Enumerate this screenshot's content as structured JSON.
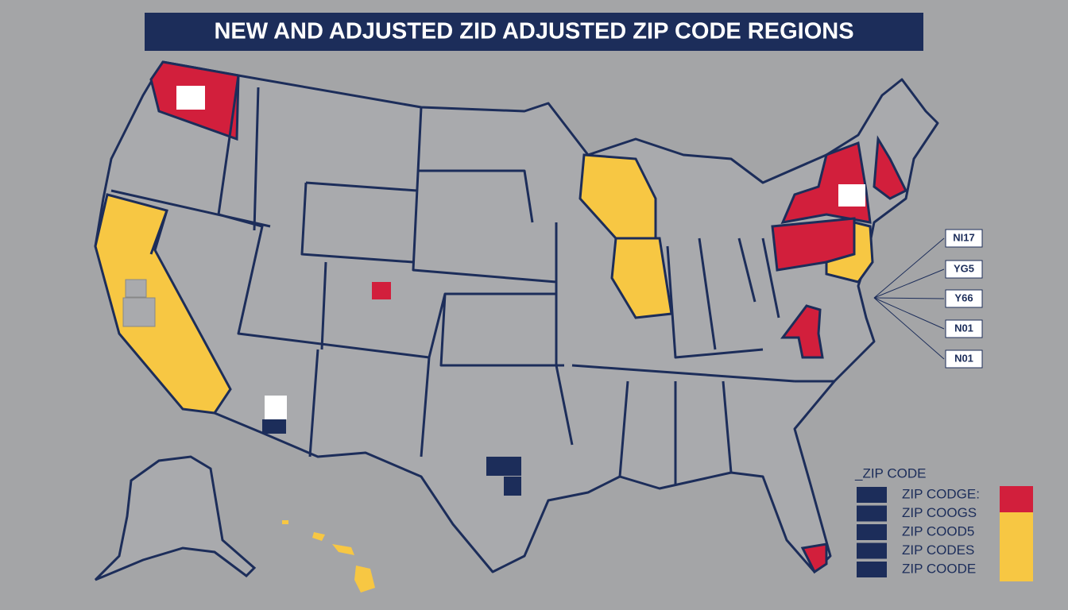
{
  "header": {
    "title": "NEW AND ADJUSTED ZID ADJUSTED ZIP CODE REGIONS"
  },
  "callouts": [
    "NI17",
    "YG5",
    "Y66",
    "N01",
    "N01"
  ],
  "legend": {
    "title": "_ZIP CODE",
    "items": [
      "ZIP CODGE:",
      "ZIP COOGS",
      "ZIP COOD5",
      "ZIP CODES",
      "ZIP COODE"
    ]
  }
}
